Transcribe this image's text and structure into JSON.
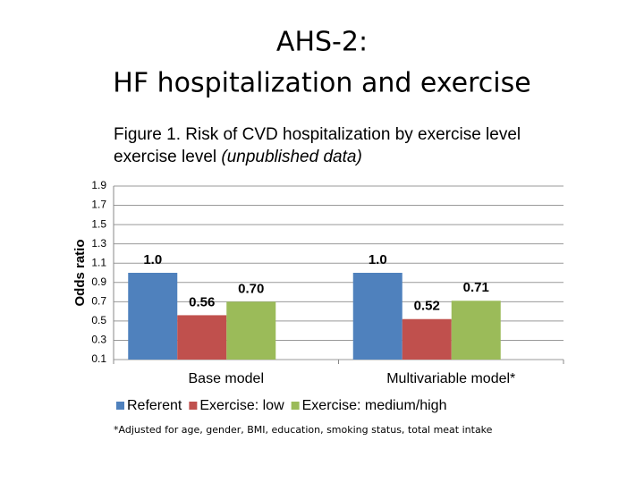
{
  "slide": {
    "title_lines": [
      "AHS-2:",
      "HF hospitalization and exercise"
    ],
    "footnote": "*Adjusted for age, gender, BMI, education, smoking status, total meat intake"
  },
  "chart_data": {
    "type": "bar",
    "title": "Figure 1. Risk of CVD hospitalization by exercise level",
    "subtitle": "(unpublished data)",
    "y_label": "Odds ratio",
    "categories": [
      "Base model",
      "Multivariable model*"
    ],
    "series": [
      {
        "name": "Referent",
        "color": "#4f81bd",
        "values": [
          1.0,
          1.0
        ],
        "value_labels": [
          "1.0",
          "1.0"
        ]
      },
      {
        "name": "Exercise: low",
        "color": "#c0504d",
        "values": [
          0.56,
          0.52
        ],
        "value_labels": [
          "0.56",
          "0.52"
        ]
      },
      {
        "name": "Exercise: medium/high",
        "color": "#9bbb59",
        "values": [
          0.7,
          0.71
        ],
        "value_labels": [
          "0.70",
          "0.71"
        ]
      }
    ],
    "ylim": [
      0.1,
      1.9
    ],
    "yticks": [
      0.1,
      0.3,
      0.5,
      0.7,
      0.9,
      1.1,
      1.3,
      1.5,
      1.7,
      1.9
    ],
    "grid": true,
    "legend": "bottom"
  }
}
